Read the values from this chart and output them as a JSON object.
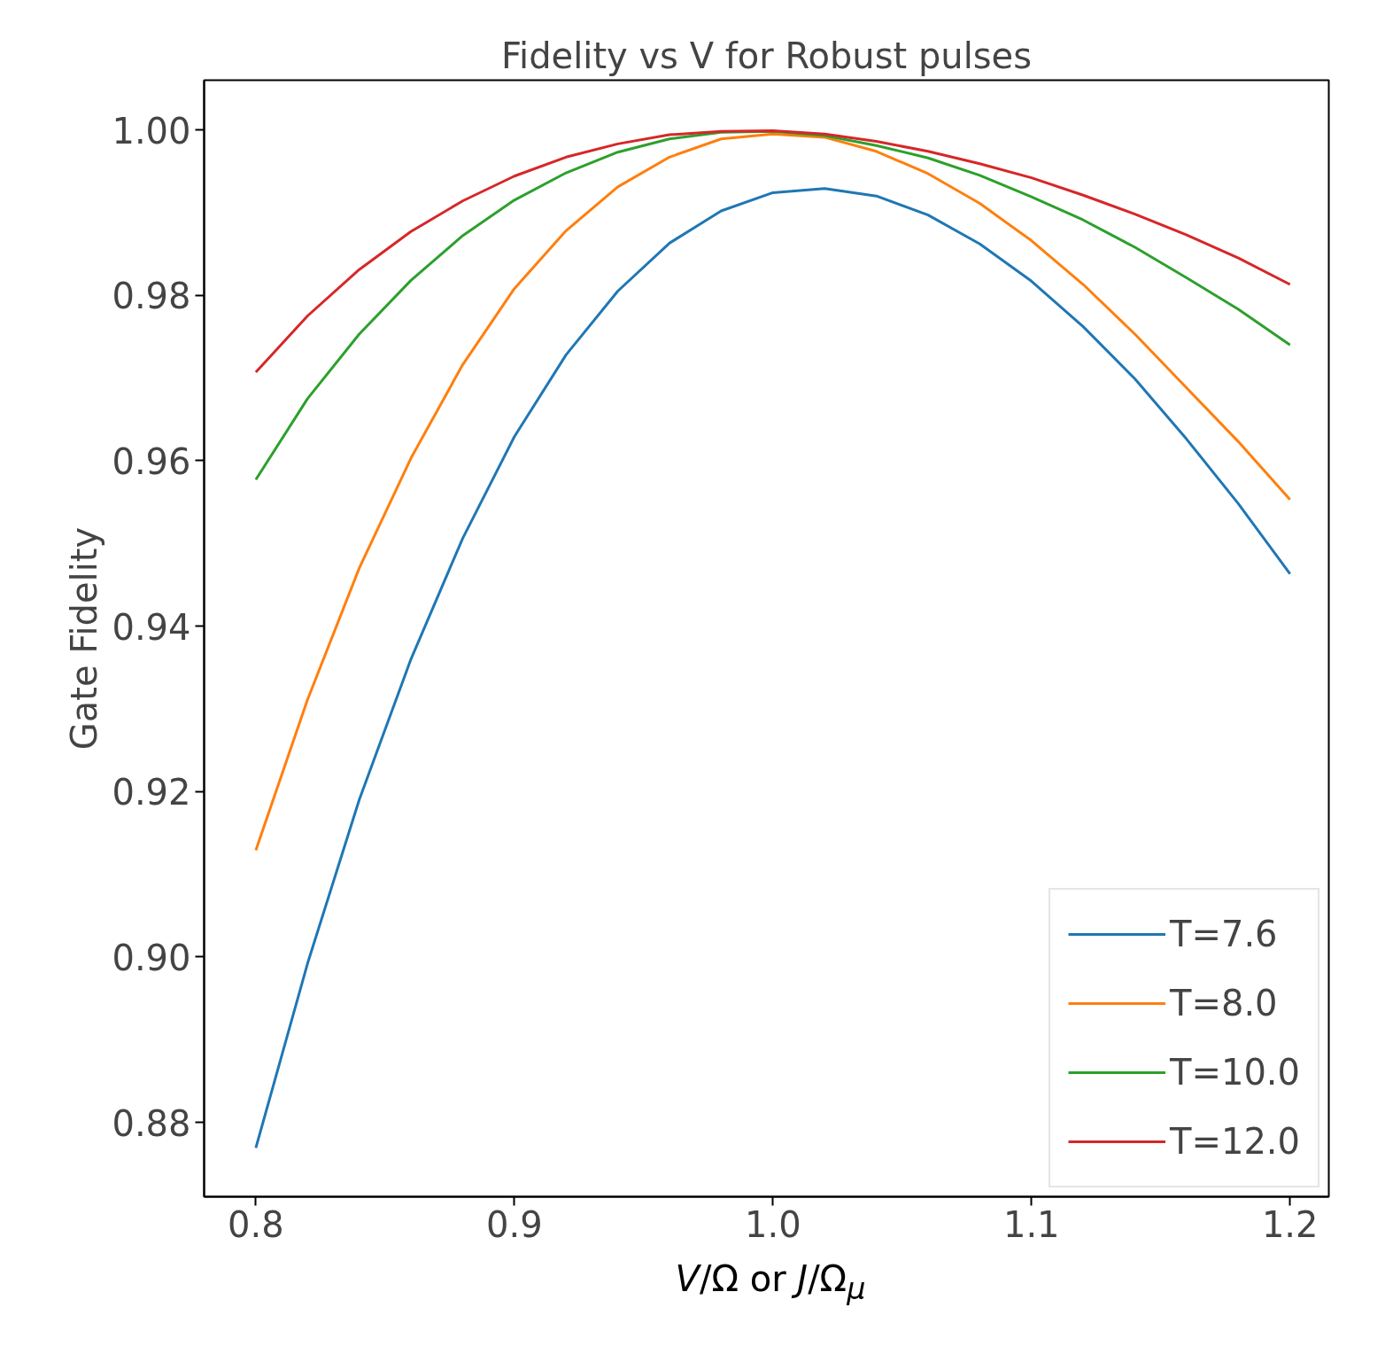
{
  "chart_data": {
    "type": "line",
    "title": "Fidelity vs V for Robust pulses",
    "xlabel": "V/Ω or J/Ω$_{μ}$",
    "ylabel": "Gate Fidelity",
    "x": [
      0.8,
      0.82,
      0.84,
      0.86,
      0.88,
      0.9,
      0.92,
      0.94,
      0.96,
      0.98,
      1.0,
      1.02,
      1.04,
      1.06,
      1.08,
      1.1,
      1.12,
      1.14,
      1.16,
      1.18,
      1.2
    ],
    "series": [
      {
        "name": "T=7.6",
        "color": "#1f77b4",
        "values": [
          0.8769,
          0.8992,
          0.919,
          0.936,
          0.9506,
          0.9629,
          0.9728,
          0.9805,
          0.9863,
          0.9902,
          0.9924,
          0.9929,
          0.992,
          0.9897,
          0.9862,
          0.9817,
          0.9762,
          0.9699,
          0.9626,
          0.9548,
          0.9463
        ]
      },
      {
        "name": "T=8.0",
        "color": "#ff7f0e",
        "values": [
          0.9129,
          0.9311,
          0.947,
          0.9603,
          0.9716,
          0.9808,
          0.9878,
          0.9931,
          0.9967,
          0.9989,
          0.9995,
          0.9991,
          0.9974,
          0.9947,
          0.9911,
          0.9866,
          0.9813,
          0.9753,
          0.9688,
          0.9623,
          0.9553
        ]
      },
      {
        "name": "T=10.0",
        "color": "#2ca02c",
        "values": [
          0.9577,
          0.9675,
          0.9753,
          0.9818,
          0.9872,
          0.9915,
          0.9948,
          0.9973,
          0.9989,
          0.9997,
          0.9998,
          0.9993,
          0.9981,
          0.9966,
          0.9945,
          0.9919,
          0.9891,
          0.9858,
          0.9821,
          0.9783,
          0.974
        ]
      },
      {
        "name": "T=12.0",
        "color": "#d62728",
        "values": [
          0.9707,
          0.9775,
          0.9831,
          0.9877,
          0.9914,
          0.9944,
          0.9967,
          0.9983,
          0.9994,
          0.9998,
          0.9999,
          0.9995,
          0.9986,
          0.9974,
          0.9959,
          0.9942,
          0.9921,
          0.9898,
          0.9873,
          0.9845,
          0.9813
        ]
      }
    ],
    "xlim": [
      0.78,
      1.215
    ],
    "xticks": [
      {
        "value": 0.8,
        "label": "0.8"
      },
      {
        "value": 0.9,
        "label": "0.9"
      },
      {
        "value": 1.0,
        "label": "1.0"
      },
      {
        "value": 1.1,
        "label": "1.1"
      },
      {
        "value": 1.2,
        "label": "1.2"
      }
    ],
    "ylim": [
      0.871,
      1.006
    ],
    "yticks": [
      {
        "value": 0.88,
        "label": "0.88"
      },
      {
        "value": 0.9,
        "label": "0.90"
      },
      {
        "value": 0.92,
        "label": "0.92"
      },
      {
        "value": 0.94,
        "label": "0.94"
      },
      {
        "value": 0.96,
        "label": "0.96"
      },
      {
        "value": 0.98,
        "label": "0.98"
      },
      {
        "value": 1.0,
        "label": "1.00"
      }
    ],
    "grid": false,
    "legend": "bottom right",
    "marker": "none",
    "line_style": "solid"
  }
}
